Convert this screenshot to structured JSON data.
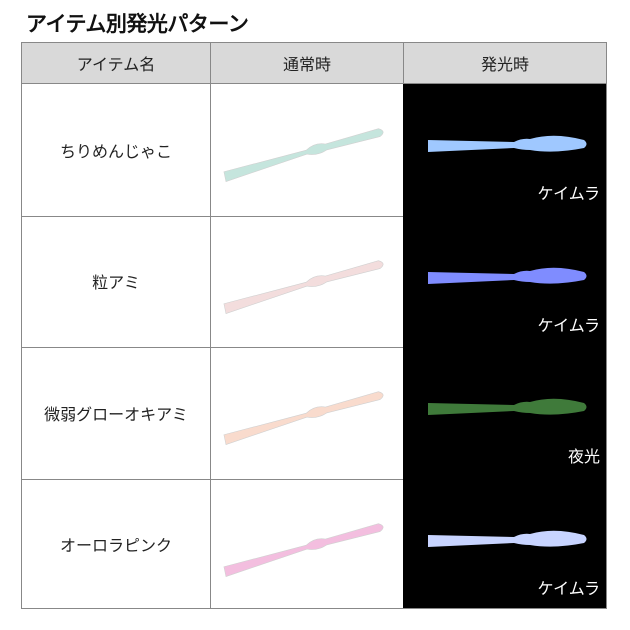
{
  "title": "アイテム別発光パターン",
  "headers": [
    "アイテム名",
    "通常時",
    "発光時"
  ],
  "rows": [
    {
      "name": "ちりめんじゃこ",
      "glow_label": "ケイムラ",
      "normal_color": "#bfe3da",
      "glow_color": "#9fc8ff"
    },
    {
      "name": "粒アミ",
      "glow_label": "ケイムラ",
      "normal_color": "#f2dada",
      "glow_color": "#7f8cff"
    },
    {
      "name": "微弱グローオキアミ",
      "glow_label": "夜光",
      "normal_color": "#f9d8c8",
      "glow_color": "#3f7a3a"
    },
    {
      "name": "オーロラピンク",
      "glow_label": "ケイムラ",
      "normal_color": "#f2b8dc",
      "glow_color": "#c8d4ff"
    }
  ]
}
